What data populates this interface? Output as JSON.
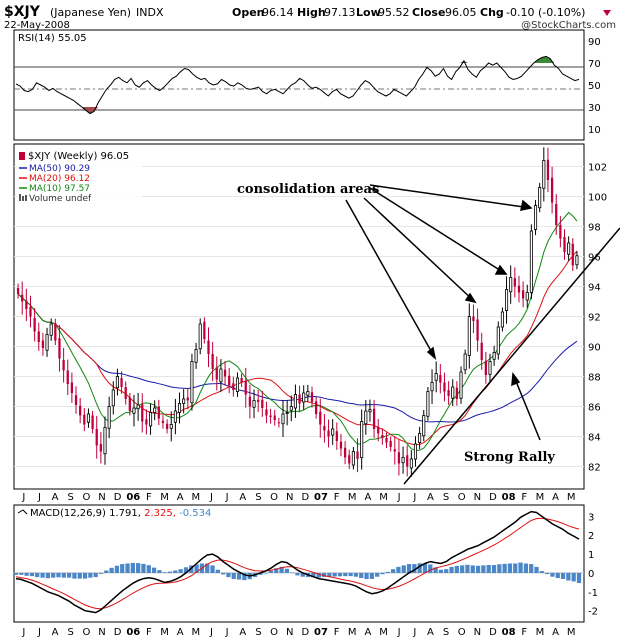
{
  "header": {
    "symbol": "$XJY",
    "name": "(Japanese Yen)",
    "exchange": "INDX",
    "date": "22-May-2008",
    "open_label": "Open",
    "open": "96.14",
    "high_label": "High",
    "high": "97.13",
    "low_label": "Low",
    "low": "95.52",
    "close_label": "Close",
    "close": "96.05",
    "chg_label": "Chg",
    "chg": "-0.10 (-0.10%)",
    "watermark": "@StockCharts.com"
  },
  "colors": {
    "up": "#000000",
    "down": "#c0003a",
    "ma50": "#1a1aaa",
    "ma20": "#dd1111",
    "ma10": "#118811",
    "macd_line": "#000000",
    "signal_line": "#dd1111",
    "histogram": "#4a86c8",
    "rsi_line": "#000000",
    "rsi_overbought_fill": "#3a8a3a",
    "rsi_oversold_fill": "#a04a4a"
  },
  "time_axis": {
    "labels": [
      "J",
      "J",
      "A",
      "S",
      "O",
      "N",
      "D",
      "06",
      "F",
      "M",
      "A",
      "M",
      "J",
      "J",
      "A",
      "S",
      "O",
      "N",
      "D",
      "07",
      "F",
      "M",
      "A",
      "M",
      "J",
      "J",
      "A",
      "S",
      "O",
      "N",
      "D",
      "08",
      "F",
      "M",
      "A",
      "M"
    ]
  },
  "rsi_panel": {
    "label": "RSI(14) 55.05",
    "ylim": [
      0,
      100
    ],
    "ticks": [
      "10",
      "30",
      "50",
      "70",
      "90"
    ],
    "overbought": 70,
    "oversold": 30
  },
  "price_panel": {
    "legend": {
      "title": "$XJY (Weekly) 96.05",
      "ma50": "MA(50) 90.29",
      "ma20": "MA(20) 96.12",
      "ma10": "MA(10) 97.57",
      "volume": "Volume undef"
    },
    "ticks": [
      "82",
      "84",
      "86",
      "88",
      "90",
      "92",
      "94",
      "96",
      "98",
      "100",
      "102"
    ],
    "annotations": {
      "consolidation": "consolidation areas",
      "rally": "Strong Rally"
    }
  },
  "macd_panel": {
    "label": "MACD(12,26,9) 1.791, 2.325, -0.534",
    "label_main": "MACD(12,26,9) 1.791, ",
    "label_signal": "2.325, ",
    "label_hist": "-0.534",
    "ticks": [
      "-2",
      "-1",
      "0",
      "1",
      "2",
      "3"
    ]
  },
  "chart_data": {
    "type": "candlestick",
    "title": "$XJY (Japanese Yen) INDX",
    "subtitle": "Weekly",
    "ylim": [
      80.5,
      103.5
    ],
    "ohlc_last": {
      "open": 96.14,
      "high": 97.13,
      "low": 95.52,
      "close": 96.05
    },
    "close": [
      93.5,
      93.0,
      92.5,
      92.0,
      91.0,
      90.3,
      89.9,
      90.8,
      91.5,
      90.4,
      89.2,
      88.4,
      87.5,
      86.9,
      86.1,
      85.4,
      84.8,
      85.5,
      84.5,
      83.4,
      83.0,
      84.6,
      86.0,
      87.1,
      88.0,
      87.3,
      86.5,
      85.7,
      85.9,
      86.1,
      85.0,
      84.8,
      85.6,
      85.9,
      85.2,
      84.9,
      84.5,
      84.8,
      85.7,
      86.2,
      86.5,
      86.4,
      89.0,
      89.8,
      91.5,
      90.5,
      89.5,
      88.5,
      87.8,
      88.5,
      88.0,
      87.4,
      87.1,
      87.9,
      87.6,
      86.8,
      86.0,
      86.4,
      86.3,
      85.9,
      85.4,
      85.3,
      85.1,
      84.9,
      85.5,
      85.6,
      86.0,
      86.8,
      86.2,
      86.9,
      87.0,
      86.3,
      85.5,
      84.8,
      84.4,
      84.0,
      84.5,
      83.7,
      83.2,
      82.6,
      82.2,
      83.0,
      82.5,
      85.0,
      85.7,
      85.8,
      84.5,
      84.2,
      83.9,
      83.6,
      83.3,
      83.0,
      82.2,
      82.6,
      82.0,
      82.5,
      83.5,
      84.2,
      85.4,
      87.0,
      87.6,
      88.2,
      87.6,
      87.0,
      86.7,
      87.3,
      86.5,
      88.3,
      89.5,
      92.0,
      91.7,
      90.4,
      89.1,
      88.1,
      89.0,
      89.6,
      91.3,
      92.3,
      93.8,
      94.6,
      94.0,
      93.6,
      93.2,
      93.6,
      97.7,
      99.4,
      100.6,
      102.4,
      101.1,
      99.6,
      98.1,
      97.2,
      96.3,
      96.9,
      95.4,
      96.05
    ],
    "series": [
      {
        "name": "MA(50)",
        "last": 90.29
      },
      {
        "name": "MA(20)",
        "last": 96.12
      },
      {
        "name": "MA(10)",
        "last": 97.57
      },
      {
        "name": "RSI(14)",
        "last": 55.05,
        "values": [
          51,
          49,
          45,
          44,
          46,
          52,
          50,
          48,
          45,
          47,
          44,
          42,
          40,
          38,
          36,
          33,
          30,
          27,
          24,
          26,
          34,
          40,
          46,
          50,
          55,
          57,
          54,
          52,
          56,
          50,
          48,
          52,
          54,
          50,
          47,
          45,
          48,
          52,
          56,
          58,
          62,
          65,
          64,
          60,
          57,
          55,
          56,
          52,
          50,
          51,
          55,
          53,
          50,
          49,
          52,
          50,
          47,
          46,
          47,
          48,
          44,
          42,
          45,
          46,
          44,
          42,
          46,
          50,
          52,
          56,
          54,
          50,
          47,
          48,
          46,
          43,
          40,
          44,
          46,
          42,
          40,
          38,
          40,
          45,
          50,
          54,
          52,
          48,
          44,
          42,
          40,
          42,
          46,
          44,
          42,
          40,
          44,
          48,
          55,
          60,
          66,
          63,
          58,
          60,
          65,
          58,
          55,
          62,
          66,
          72,
          64,
          60,
          57,
          63,
          66,
          70,
          68,
          70,
          66,
          62,
          57,
          55,
          56,
          58,
          62,
          66,
          70,
          73,
          75,
          76,
          74,
          68,
          65,
          60,
          58,
          56,
          54,
          55.05
        ]
      },
      {
        "name": "MACD",
        "last": 1.791,
        "values": [
          -0.3,
          -0.35,
          -0.45,
          -0.55,
          -0.7,
          -0.85,
          -1.0,
          -1.1,
          -1.2,
          -1.35,
          -1.5,
          -1.7,
          -1.85,
          -2.0,
          -2.05,
          -2.1,
          -1.95,
          -1.7,
          -1.45,
          -1.2,
          -0.95,
          -0.75,
          -0.55,
          -0.4,
          -0.3,
          -0.25,
          -0.3,
          -0.4,
          -0.5,
          -0.45,
          -0.35,
          -0.2,
          0.0,
          0.25,
          0.5,
          0.75,
          0.95,
          1.0,
          0.85,
          0.6,
          0.4,
          0.2,
          0.05,
          -0.1,
          -0.15,
          -0.1,
          0.0,
          0.1,
          0.25,
          0.45,
          0.6,
          0.55,
          0.35,
          0.15,
          0.0,
          -0.1,
          -0.2,
          -0.3,
          -0.35,
          -0.4,
          -0.45,
          -0.5,
          -0.55,
          -0.6,
          -0.7,
          -0.85,
          -1.0,
          -1.1,
          -1.05,
          -0.95,
          -0.8,
          -0.6,
          -0.4,
          -0.2,
          0.0,
          0.15,
          0.35,
          0.5,
          0.6,
          0.55,
          0.5,
          0.6,
          0.8,
          0.95,
          1.1,
          1.25,
          1.35,
          1.45,
          1.6,
          1.75,
          1.9,
          2.1,
          2.3,
          2.5,
          2.7,
          2.95,
          3.1,
          3.25,
          3.2,
          3.0,
          2.8,
          2.6,
          2.45,
          2.3,
          2.1,
          1.95,
          1.791
        ]
      },
      {
        "name": "Signal",
        "last": 2.325,
        "values": [
          -0.2,
          -0.25,
          -0.3,
          -0.38,
          -0.48,
          -0.6,
          -0.72,
          -0.85,
          -0.97,
          -1.1,
          -1.25,
          -1.4,
          -1.55,
          -1.7,
          -1.8,
          -1.88,
          -1.9,
          -1.83,
          -1.72,
          -1.58,
          -1.42,
          -1.25,
          -1.08,
          -0.92,
          -0.78,
          -0.66,
          -0.58,
          -0.55,
          -0.54,
          -0.52,
          -0.48,
          -0.4,
          -0.3,
          -0.15,
          0.05,
          0.25,
          0.45,
          0.6,
          0.68,
          0.68,
          0.62,
          0.52,
          0.4,
          0.28,
          0.18,
          0.12,
          0.1,
          0.1,
          0.14,
          0.2,
          0.28,
          0.33,
          0.33,
          0.28,
          0.2,
          0.12,
          0.03,
          -0.06,
          -0.14,
          -0.2,
          -0.26,
          -0.32,
          -0.38,
          -0.43,
          -0.5,
          -0.58,
          -0.68,
          -0.78,
          -0.85,
          -0.88,
          -0.86,
          -0.8,
          -0.72,
          -0.6,
          -0.47,
          -0.32,
          -0.16,
          0.0,
          0.15,
          0.26,
          0.33,
          0.4,
          0.48,
          0.58,
          0.7,
          0.82,
          0.95,
          1.07,
          1.2,
          1.33,
          1.48,
          1.64,
          1.82,
          2.0,
          2.2,
          2.4,
          2.6,
          2.78,
          2.88,
          2.9,
          2.86,
          2.8,
          2.72,
          2.62,
          2.5,
          2.4,
          2.325
        ]
      }
    ]
  }
}
